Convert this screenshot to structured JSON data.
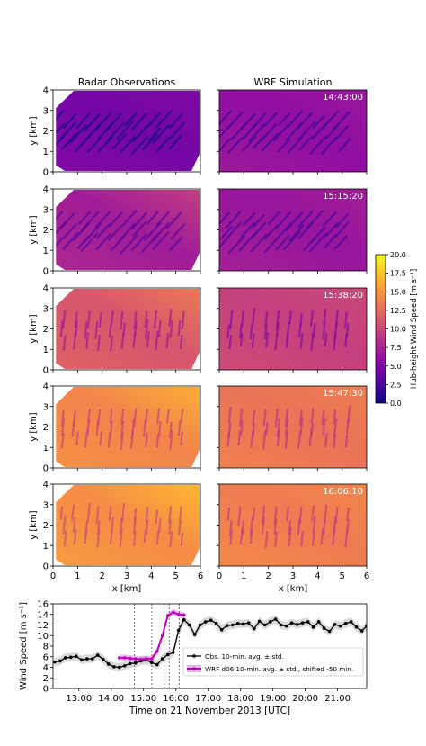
{
  "figure": {
    "columns": [
      "Radar Observations",
      "WRF Simulation"
    ],
    "timestamps": [
      "14:43:00",
      "15:15:20",
      "15:38:20",
      "15:47:30",
      "16:06:10"
    ],
    "panel_bg_levels": [
      {
        "obs": 4.5,
        "wrf": 6.0
      },
      {
        "obs": 7.0,
        "wrf": 6.5
      },
      {
        "obs": 11.0,
        "wrf": 9.5
      },
      {
        "obs": 14.0,
        "wrf": 13.0
      },
      {
        "obs": 14.5,
        "wrf": 13.5
      }
    ]
  },
  "chart_data": [
    {
      "type": "heatmap",
      "title": "",
      "xlabel": "x [km]",
      "ylabel": "y [km]",
      "xlim": [
        0,
        6
      ],
      "ylim": [
        0,
        4
      ],
      "x_ticks": [
        "0",
        "1",
        "2",
        "3",
        "4",
        "5",
        "6"
      ],
      "y_ticks": [
        "0",
        "1",
        "2",
        "3",
        "4"
      ],
      "colorbar": {
        "label": "Hub-height Wind Speed [m s⁻¹]",
        "range": [
          0.0,
          20.0
        ],
        "ticks": [
          "0.0",
          "2.5",
          "5.0",
          "7.5",
          "10.0",
          "12.5",
          "15.0",
          "17.5",
          "20.0"
        ],
        "colormap": "plasma"
      }
    },
    {
      "type": "line",
      "title": "",
      "xlabel": "Time on 21 November 2013 [UTC]",
      "ylabel": "Wind Speed [m s⁻¹]",
      "ylim": [
        0,
        16
      ],
      "xlim_hours": [
        12.2,
        21.9
      ],
      "x_ticks": [
        "13:00",
        "14:00",
        "15:00",
        "16:00",
        "17:00",
        "18:00",
        "19:00",
        "20:00",
        "21:00"
      ],
      "y_ticks": [
        "0",
        "2",
        "4",
        "6",
        "8",
        "10",
        "12",
        "14",
        "16"
      ],
      "vlines_hours": [
        14.717,
        15.256,
        15.639,
        15.792,
        16.103
      ],
      "legend_position": "lower right",
      "series": [
        {
          "name": "Obs. 10-min. avg. ± std.",
          "color": "#000000",
          "x_hours": [
            12.25,
            12.417,
            12.583,
            12.75,
            12.917,
            13.083,
            13.25,
            13.417,
            13.583,
            13.75,
            13.917,
            14.083,
            14.25,
            14.417,
            14.583,
            14.75,
            14.917,
            15.083,
            15.25,
            15.417,
            15.583,
            15.75,
            15.917,
            16.083,
            16.25,
            16.417,
            16.583,
            16.75,
            16.917,
            17.083,
            17.25,
            17.417,
            17.583,
            17.75,
            17.917,
            18.083,
            18.25,
            18.417,
            18.583,
            18.75,
            18.917,
            19.083,
            19.25,
            19.417,
            19.583,
            19.75,
            19.917,
            20.083,
            20.25,
            20.417,
            20.583,
            20.75,
            20.917,
            21.083,
            21.25,
            21.417,
            21.583,
            21.75,
            21.9
          ],
          "y": [
            5.0,
            5.2,
            5.8,
            5.9,
            6.1,
            5.4,
            5.6,
            5.6,
            6.3,
            5.5,
            4.6,
            4.1,
            4.0,
            4.3,
            4.7,
            4.8,
            5.2,
            5.4,
            4.9,
            4.5,
            5.6,
            6.4,
            6.8,
            11.0,
            13.0,
            12.0,
            10.2,
            12.0,
            12.6,
            12.9,
            12.3,
            11.1,
            11.9,
            12.0,
            12.3,
            12.2,
            12.4,
            11.3,
            12.7,
            12.0,
            12.6,
            13.1,
            12.0,
            11.8,
            12.4,
            12.1,
            12.4,
            12.6,
            11.6,
            12.6,
            11.4,
            10.8,
            12.1,
            11.8,
            12.3,
            12.6,
            11.6,
            10.9,
            11.8
          ],
          "std": 0.8
        },
        {
          "name": "WRF d06 10-min. avg. ± std., shifted -50 min.",
          "color": "#bf00bf",
          "x_hours": [
            14.25,
            14.417,
            14.583,
            14.75,
            14.917,
            15.083,
            15.25,
            15.417,
            15.583,
            15.75,
            15.917,
            16.083,
            16.25
          ],
          "y": [
            5.8,
            5.8,
            5.7,
            5.6,
            5.5,
            5.6,
            5.6,
            7.0,
            10.0,
            13.8,
            14.4,
            14.0,
            13.9
          ],
          "std": 0.6
        }
      ]
    }
  ]
}
